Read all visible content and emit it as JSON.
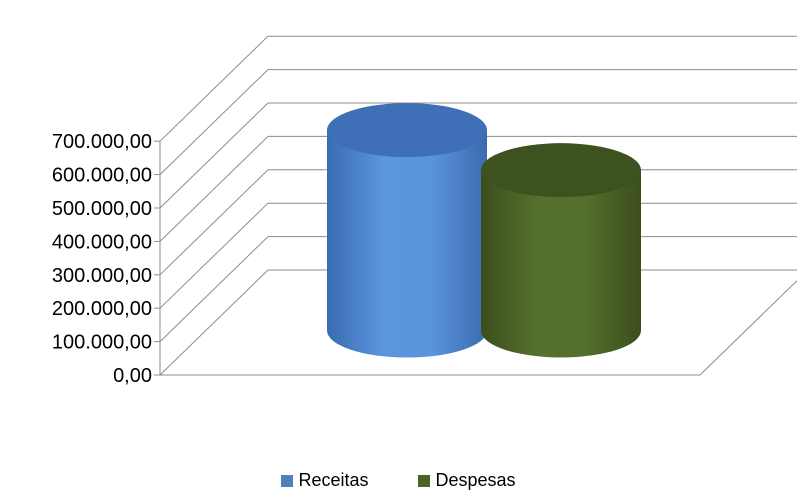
{
  "chart_data": {
    "type": "bar",
    "style": "3d-cylinder",
    "categories": [
      ""
    ],
    "series": [
      {
        "name": "Receitas",
        "values": [
          600000
        ],
        "color": "#4F81BD"
      },
      {
        "name": "Despesas",
        "values": [
          480000
        ],
        "color": "#4F6228"
      }
    ],
    "ylim": [
      0,
      700000
    ],
    "yticks": [
      0,
      100000,
      200000,
      300000,
      400000,
      500000,
      600000,
      700000
    ],
    "ytick_labels": [
      "0,00",
      "100.000,00",
      "200.000,00",
      "300.000,00",
      "400.000,00",
      "500.000,00",
      "600.000,00",
      "700.000,00"
    ],
    "grid": true,
    "legend_position": "bottom",
    "title": "",
    "xlabel": "",
    "ylabel": ""
  }
}
